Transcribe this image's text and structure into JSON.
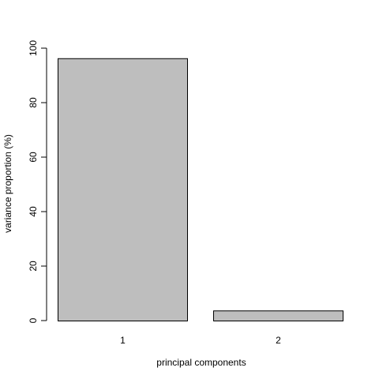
{
  "chart_data": {
    "type": "bar",
    "categories": [
      "1",
      "2"
    ],
    "values": [
      96.3,
      3.7
    ],
    "xlabel": "principal components",
    "ylabel": "variance proportion (%)",
    "ylim": [
      0,
      100
    ],
    "yticks": [
      0,
      20,
      40,
      60,
      80,
      100
    ],
    "grid": false,
    "legend": "none",
    "bar_color": "#bebebe",
    "border_color": "#000000"
  }
}
